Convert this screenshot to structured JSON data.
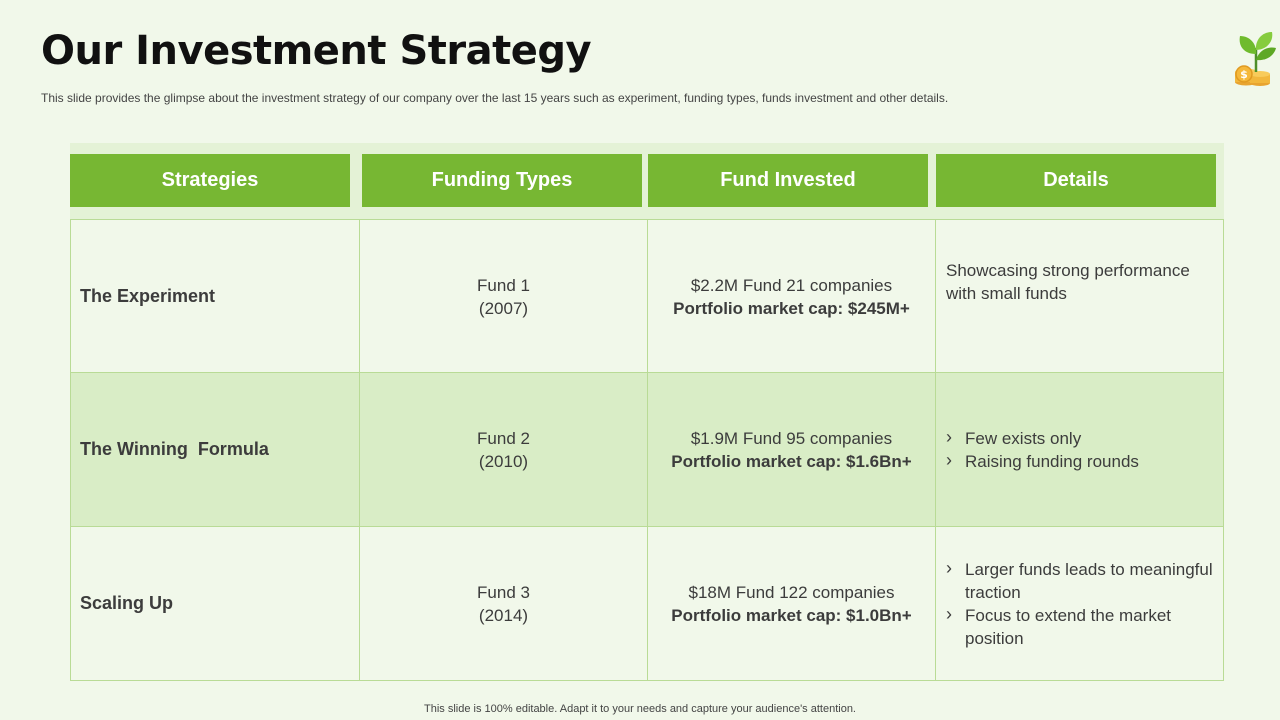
{
  "title": "Our Investment Strategy",
  "subtitle": "This slide provides the glimpse about the investment strategy of our company over the last 15 years such as experiment, funding types, funds investment and other details.",
  "logo_icon": "plant-coins-icon",
  "table": {
    "headers": [
      "Strategies",
      "Funding Types",
      "Fund Invested",
      "Details"
    ],
    "rows": [
      {
        "strategy": "The Experiment",
        "fund_name": "Fund 1",
        "fund_year": "(2007)",
        "invested": "$2.2M Fund 21 companies",
        "market_cap": "Portfolio market cap: $245M+",
        "details_text": "Showcasing strong performance with small funds"
      },
      {
        "strategy": "The Winning  Formula",
        "fund_name": "Fund 2",
        "fund_year": "(2010)",
        "invested": "$1.9M Fund 95 companies",
        "market_cap": "Portfolio market cap: $1.6Bn+",
        "details": [
          "Few exists only",
          "Raising funding rounds"
        ]
      },
      {
        "strategy": "Scaling Up",
        "fund_name": "Fund 3",
        "fund_year": "(2014)",
        "invested": "$18M Fund 122 companies",
        "market_cap": "Portfolio market cap: $1.0Bn+",
        "details": [
          "Larger funds leads to meaningful traction",
          "Focus to extend the market position"
        ]
      }
    ]
  },
  "footer": "This slide is 100% editable. Adapt it to your needs and capture your audience's attention.",
  "colors": {
    "header_green": "#77b733",
    "alt_row": "#d9edc6",
    "background": "#f1f8ea"
  }
}
